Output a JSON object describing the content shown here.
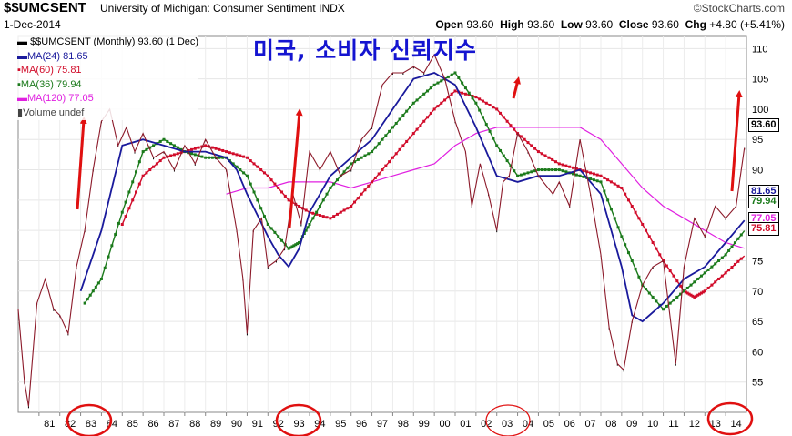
{
  "header": {
    "symbol": "$$UMCSENT",
    "name": "University of Michigan: Consumer Sentiment",
    "exchange": "INDX",
    "date": "1-Dec-2014",
    "logo": "©StockCharts.com",
    "open_label": "Open",
    "open": "93.60",
    "high_label": "High",
    "high": "93.60",
    "low_label": "Low",
    "low": "93.60",
    "close_label": "Close",
    "close": "93.60",
    "chg_label": "Chg",
    "chg": "+4.80 (+5.41%)"
  },
  "legend": {
    "main": "$$UMCSENT (Monthly) 93.60 (1 Dec)",
    "ma24": "MA(24) 81.65",
    "ma60": "MA(60) 75.81",
    "ma36": "MA(36) 79.94",
    "ma120": "MA(120) 77.05",
    "volume": "Volume undef"
  },
  "annotation": "미국, 소비자 신뢰지수",
  "colors": {
    "price": "#8c1a2a",
    "price_bar": "#000000",
    "ma24": "#1a1a9c",
    "ma60": "#d10c2a",
    "ma36": "#1b7a1b",
    "ma120": "#e020e0",
    "arrow": "#e01010",
    "circle": "#e01010",
    "annotation": "#1414d0"
  },
  "chart_data": {
    "type": "line",
    "title": "$$UMCSENT University of Michigan: Consumer Sentiment INDX",
    "xlabel": "",
    "ylabel": "",
    "xlim": [
      1980,
      2015
    ],
    "ylim": [
      50,
      112
    ],
    "yticks": [
      55,
      60,
      65,
      70,
      75,
      80,
      85,
      90,
      95,
      100,
      105,
      110
    ],
    "xticks": [
      "81",
      "82",
      "83",
      "84",
      "85",
      "86",
      "87",
      "88",
      "89",
      "90",
      "91",
      "92",
      "93",
      "94",
      "95",
      "96",
      "97",
      "98",
      "99",
      "00",
      "01",
      "02",
      "03",
      "04",
      "05",
      "06",
      "07",
      "08",
      "09",
      "10",
      "11",
      "12",
      "13",
      "14"
    ],
    "last_value_tags": [
      "93.60",
      "81.65",
      "79.94",
      "77.05",
      "75.81"
    ],
    "grid": true,
    "series": [
      {
        "name": "$$UMCSENT",
        "x": [
          1980.0,
          1980.3,
          1980.5,
          1980.9,
          1981.3,
          1981.7,
          1982.0,
          1982.4,
          1982.8,
          1983.2,
          1983.6,
          1984.0,
          1984.4,
          1984.8,
          1985.2,
          1985.6,
          1986.0,
          1986.5,
          1987.0,
          1987.5,
          1988.0,
          1988.5,
          1989.0,
          1989.5,
          1990.0,
          1990.5,
          1990.8,
          1991.0,
          1991.3,
          1991.7,
          1992.0,
          1992.4,
          1992.8,
          1993.2,
          1993.6,
          1994.0,
          1994.5,
          1995.0,
          1995.5,
          1996.0,
          1996.5,
          1997.0,
          1997.5,
          1998.0,
          1998.5,
          1999.0,
          1999.5,
          2000.0,
          2000.5,
          2001.0,
          2001.5,
          2001.8,
          2002.2,
          2002.6,
          2003.0,
          2003.3,
          2003.6,
          2004.0,
          2004.5,
          2005.0,
          2005.7,
          2006.0,
          2006.5,
          2007.0,
          2007.5,
          2008.0,
          2008.4,
          2008.8,
          2009.1,
          2009.5,
          2010.0,
          2010.5,
          2011.0,
          2011.6,
          2012.0,
          2012.5,
          2013.0,
          2013.5,
          2014.0,
          2014.5,
          2014.9
        ],
        "values": [
          67,
          55,
          51,
          68,
          72,
          67,
          66,
          63,
          74,
          80,
          90,
          98,
          100,
          94,
          97,
          93,
          96,
          92,
          93,
          90,
          94,
          91,
          95,
          92,
          90,
          80,
          72,
          63,
          80,
          82,
          74,
          75,
          77,
          86,
          81,
          93,
          90,
          93,
          89,
          90,
          95,
          97,
          104,
          106,
          106,
          107,
          106,
          109,
          105,
          98,
          93,
          84,
          91,
          86,
          80,
          88,
          89,
          96,
          93,
          89,
          86,
          88,
          84,
          95,
          86,
          76,
          64,
          58,
          57,
          65,
          71,
          74,
          75,
          58,
          74,
          82,
          79,
          84,
          82,
          84,
          93.6
        ]
      },
      {
        "name": "MA(24)",
        "x": [
          1983.0,
          1984.0,
          1985.0,
          1986.0,
          1987.0,
          1988.0,
          1989.0,
          1990.0,
          1990.5,
          1991.0,
          1992.0,
          1992.5,
          1993.0,
          1993.5,
          1994.0,
          1995.0,
          1996.0,
          1997.0,
          1998.0,
          1999.0,
          2000.0,
          2001.0,
          2002.0,
          2003.0,
          2004.0,
          2005.0,
          2006.0,
          2007.0,
          2008.0,
          2009.0,
          2009.5,
          2010.0,
          2011.0,
          2012.0,
          2013.0,
          2014.0,
          2014.9
        ],
        "values": [
          70,
          80,
          94,
          95,
          94,
          93,
          93,
          92,
          90,
          86,
          79,
          76,
          74,
          77,
          83,
          89,
          92,
          95,
          100,
          105,
          106,
          104,
          97,
          89,
          88,
          89,
          89,
          90,
          86,
          74,
          66,
          65,
          68,
          72,
          74,
          78,
          81.65
        ]
      },
      {
        "name": "MA(36)",
        "x": [
          1983.2,
          1984.0,
          1985.0,
          1986.0,
          1987.0,
          1988.0,
          1989.0,
          1990.0,
          1991.0,
          1992.0,
          1993.0,
          1993.5,
          1994.0,
          1995.0,
          1996.0,
          1997.0,
          1998.0,
          1999.0,
          2000.0,
          2001.0,
          2002.0,
          2003.0,
          2004.0,
          2005.0,
          2006.0,
          2007.0,
          2008.0,
          2009.0,
          2010.0,
          2011.0,
          2012.0,
          2013.0,
          2014.0,
          2014.9
        ],
        "values": [
          68,
          72,
          83,
          93,
          95,
          93,
          92,
          92,
          89,
          81,
          77,
          78,
          81,
          87,
          91,
          93,
          97,
          101,
          104,
          106,
          101,
          94,
          89,
          90,
          90,
          89,
          88,
          79,
          71,
          67,
          70,
          73,
          76,
          79.94
        ]
      },
      {
        "name": "MA(60)",
        "x": [
          1985.0,
          1986.0,
          1987.0,
          1988.0,
          1989.0,
          1990.0,
          1991.0,
          1992.0,
          1993.0,
          1994.0,
          1995.0,
          1996.0,
          1997.0,
          1998.0,
          1999.0,
          2000.0,
          2001.0,
          2002.0,
          2003.0,
          2004.0,
          2005.0,
          2006.0,
          2007.0,
          2008.0,
          2009.0,
          2010.0,
          2011.0,
          2012.0,
          2012.5,
          2013.0,
          2014.0,
          2014.9
        ],
        "values": [
          81,
          89,
          92,
          93,
          94,
          93,
          92,
          89,
          85,
          83,
          82,
          84,
          88,
          92,
          96,
          100,
          103,
          102,
          100,
          96,
          93,
          91,
          90,
          89,
          87,
          81,
          75,
          70,
          69,
          70,
          73,
          75.81
        ]
      },
      {
        "name": "MA(120)",
        "x": [
          1990.0,
          1991.0,
          1992.0,
          1993.0,
          1994.0,
          1995.0,
          1996.0,
          1997.0,
          1998.0,
          1999.0,
          2000.0,
          2001.0,
          2002.0,
          2003.0,
          2004.0,
          2005.0,
          2006.0,
          2007.0,
          2008.0,
          2009.0,
          2010.0,
          2011.0,
          2012.0,
          2013.0,
          2014.0,
          2014.9
        ],
        "values": [
          86,
          87,
          87,
          88,
          88,
          88,
          87,
          88,
          89,
          90,
          91,
          94,
          96,
          97,
          97,
          97,
          97,
          97,
          95,
          91,
          87,
          84,
          82,
          80,
          78,
          77.05
        ]
      }
    ]
  }
}
